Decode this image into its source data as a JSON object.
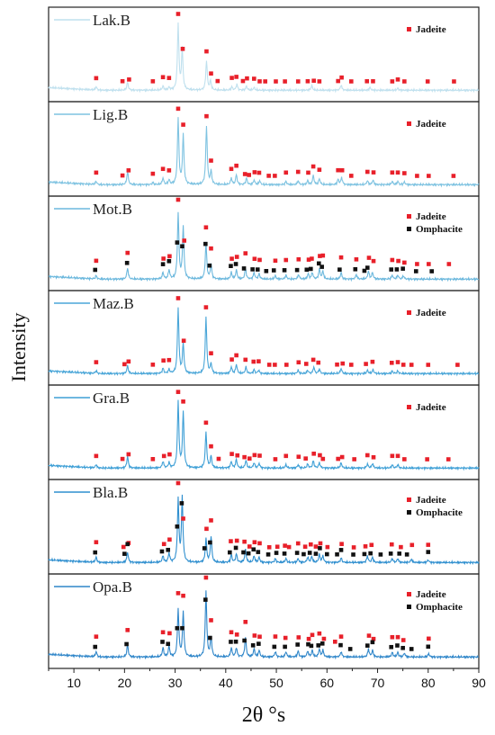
{
  "chart_data": {
    "type": "line",
    "xlabel": "2θ °s",
    "ylabel": "Intensity",
    "xlim": [
      5,
      90
    ],
    "x_ticks": [
      10,
      20,
      30,
      40,
      50,
      60,
      70,
      80,
      90
    ],
    "colors": {
      "jadeite": "#e8202a",
      "omphacite": "#111111",
      "axis": "#222222"
    },
    "legend_labels": {
      "jadeite": "Jadeite",
      "omphacite": "Omphacite"
    },
    "series": [
      {
        "name": "Lak.B",
        "color": "#bfe0ee",
        "minerals": [
          "jadeite"
        ],
        "peaks": [
          [
            14.4,
            0.05
          ],
          [
            20.6,
            0.12
          ],
          [
            27.6,
            0.06
          ],
          [
            28.8,
            0.04
          ],
          [
            30.6,
            1.0
          ],
          [
            31.4,
            0.62
          ],
          [
            36.2,
            0.45
          ],
          [
            37.0,
            0.14
          ],
          [
            41.2,
            0.05
          ],
          [
            42.2,
            0.09
          ],
          [
            44.1,
            0.06
          ],
          [
            45.6,
            0.04
          ],
          [
            57.0,
            0.07
          ],
          [
            62.8,
            0.08
          ],
          [
            68.5,
            0.04
          ],
          [
            74.0,
            0.03
          ]
        ],
        "jadeite_markers": [
          14.4,
          19.6,
          20.9,
          25.6,
          27.6,
          28.8,
          30.6,
          31.5,
          36.2,
          37.1,
          38.4,
          41.2,
          42.1,
          43.4,
          44.2,
          45.6,
          46.7,
          47.8,
          49.9,
          51.7,
          54.3,
          56.2,
          57.4,
          58.5,
          62.2,
          62.9,
          64.8,
          67.9,
          69.1,
          72.9,
          74.0,
          75.3,
          79.9,
          85.1
        ],
        "omphacite_markers": []
      },
      {
        "name": "Lig.B",
        "color": "#7fc3e1",
        "minerals": [
          "jadeite"
        ],
        "peaks": [
          [
            14.4,
            0.05
          ],
          [
            20.6,
            0.2
          ],
          [
            25.6,
            0.03
          ],
          [
            27.6,
            0.1
          ],
          [
            28.8,
            0.07
          ],
          [
            30.6,
            1.0
          ],
          [
            31.6,
            0.75
          ],
          [
            36.2,
            0.9
          ],
          [
            37.1,
            0.2
          ],
          [
            41.1,
            0.1
          ],
          [
            42.1,
            0.15
          ],
          [
            44.1,
            0.1
          ],
          [
            45.6,
            0.07
          ],
          [
            46.7,
            0.06
          ],
          [
            51.9,
            0.05
          ],
          [
            54.3,
            0.06
          ],
          [
            56.2,
            0.06
          ],
          [
            57.3,
            0.14
          ],
          [
            58.5,
            0.09
          ],
          [
            62.2,
            0.08
          ],
          [
            62.9,
            0.11
          ],
          [
            68.0,
            0.06
          ],
          [
            69.1,
            0.07
          ],
          [
            72.9,
            0.05
          ],
          [
            74.0,
            0.05
          ],
          [
            75.3,
            0.04
          ]
        ],
        "jadeite_markers": [
          14.4,
          19.6,
          20.8,
          25.6,
          27.6,
          28.8,
          30.6,
          31.6,
          36.2,
          37.1,
          41.1,
          42.1,
          43.8,
          44.6,
          45.7,
          46.6,
          48.5,
          49.7,
          51.9,
          54.3,
          56.3,
          57.3,
          58.5,
          62.2,
          63.0,
          64.8,
          68.0,
          69.2,
          72.9,
          74.0,
          75.3,
          77.8,
          80.1,
          85.0
        ],
        "omphacite_markers": []
      },
      {
        "name": "Mot.B",
        "color": "#6cb8dd",
        "minerals": [
          "jadeite",
          "omphacite"
        ],
        "peaks": [
          [
            14.4,
            0.05
          ],
          [
            20.6,
            0.17
          ],
          [
            27.6,
            0.1
          ],
          [
            28.8,
            0.14
          ],
          [
            30.6,
            1.0
          ],
          [
            31.6,
            0.8
          ],
          [
            36.1,
            0.55
          ],
          [
            37.1,
            0.22
          ],
          [
            41.1,
            0.1
          ],
          [
            42.1,
            0.14
          ],
          [
            43.9,
            0.16
          ],
          [
            45.6,
            0.1
          ],
          [
            46.6,
            0.08
          ],
          [
            49.8,
            0.05
          ],
          [
            51.9,
            0.06
          ],
          [
            54.4,
            0.07
          ],
          [
            56.3,
            0.08
          ],
          [
            57.1,
            0.1
          ],
          [
            58.5,
            0.15
          ],
          [
            59.2,
            0.12
          ],
          [
            62.8,
            0.1
          ],
          [
            65.8,
            0.07
          ],
          [
            68.2,
            0.12
          ],
          [
            69.0,
            0.1
          ],
          [
            72.9,
            0.06
          ],
          [
            74.0,
            0.06
          ],
          [
            75.1,
            0.05
          ]
        ],
        "jadeite_markers": [
          14.4,
          20.6,
          27.7,
          28.9,
          30.6,
          31.8,
          36.1,
          37.1,
          41.2,
          42.2,
          43.9,
          45.7,
          46.7,
          49.8,
          51.9,
          54.4,
          56.4,
          57.0,
          58.6,
          59.2,
          62.8,
          65.8,
          68.3,
          69.2,
          72.9,
          74.1,
          75.3,
          77.8,
          80.1,
          84.1
        ],
        "omphacite_markers": [
          14.2,
          20.5,
          27.6,
          28.8,
          30.4,
          31.4,
          36.0,
          36.8,
          41.0,
          42.0,
          43.6,
          45.3,
          46.3,
          48.0,
          49.5,
          51.6,
          54.1,
          56.0,
          56.8,
          58.4,
          59.0,
          62.5,
          65.6,
          67.4,
          68.0,
          72.7,
          73.8,
          75.0,
          77.6,
          80.7
        ]
      },
      {
        "name": "Maz.B",
        "color": "#4aa6d8",
        "minerals": [
          "jadeite"
        ],
        "peaks": [
          [
            14.4,
            0.04
          ],
          [
            20.6,
            0.12
          ],
          [
            27.6,
            0.08
          ],
          [
            28.8,
            0.06
          ],
          [
            30.6,
            1.0
          ],
          [
            31.6,
            0.46
          ],
          [
            36.1,
            0.87
          ],
          [
            37.1,
            0.15
          ],
          [
            41.1,
            0.1
          ],
          [
            42.1,
            0.14
          ],
          [
            44.0,
            0.1
          ],
          [
            45.6,
            0.06
          ],
          [
            46.5,
            0.05
          ],
          [
            54.3,
            0.05
          ],
          [
            56.2,
            0.05
          ],
          [
            57.4,
            0.1
          ],
          [
            58.5,
            0.07
          ],
          [
            62.8,
            0.08
          ],
          [
            68.0,
            0.05
          ],
          [
            69.1,
            0.06
          ],
          [
            72.9,
            0.04
          ],
          [
            74.0,
            0.04
          ]
        ],
        "jadeite_markers": [
          14.4,
          20.0,
          20.8,
          25.6,
          27.7,
          28.8,
          30.6,
          31.7,
          36.1,
          37.1,
          41.2,
          42.1,
          43.9,
          45.5,
          46.5,
          48.6,
          49.7,
          52.0,
          54.4,
          55.9,
          57.3,
          58.3,
          62.0,
          63.1,
          64.8,
          67.7,
          69.0,
          72.8,
          74.0,
          75.1,
          76.7,
          80.0,
          85.8
        ],
        "omphacite_markers": []
      },
      {
        "name": "Gra.B",
        "color": "#3e9fd6",
        "minerals": [
          "jadeite"
        ],
        "peaks": [
          [
            14.4,
            0.05
          ],
          [
            20.6,
            0.18
          ],
          [
            27.6,
            0.1
          ],
          [
            28.8,
            0.08
          ],
          [
            30.6,
            1.0
          ],
          [
            31.6,
            0.85
          ],
          [
            36.1,
            0.55
          ],
          [
            37.1,
            0.18
          ],
          [
            41.1,
            0.1
          ],
          [
            42.1,
            0.13
          ],
          [
            44.0,
            0.12
          ],
          [
            45.6,
            0.08
          ],
          [
            46.6,
            0.07
          ],
          [
            51.9,
            0.05
          ],
          [
            54.3,
            0.05
          ],
          [
            56.2,
            0.06
          ],
          [
            57.3,
            0.11
          ],
          [
            58.5,
            0.08
          ],
          [
            62.8,
            0.08
          ],
          [
            68.0,
            0.06
          ],
          [
            69.0,
            0.07
          ],
          [
            72.9,
            0.05
          ],
          [
            74.0,
            0.05
          ]
        ],
        "jadeite_markers": [
          14.4,
          19.6,
          20.8,
          25.6,
          27.8,
          28.9,
          30.6,
          31.6,
          36.1,
          37.1,
          38.6,
          41.2,
          42.3,
          43.7,
          44.7,
          45.7,
          46.7,
          49.8,
          51.9,
          54.4,
          55.8,
          57.4,
          58.6,
          59.2,
          62.2,
          63.0,
          65.4,
          68.0,
          69.2,
          72.9,
          74.0,
          75.3,
          79.8,
          84.0
        ],
        "omphacite_markers": []
      },
      {
        "name": "Bla.B",
        "color": "#2f8fcf",
        "minerals": [
          "jadeite",
          "omphacite"
        ],
        "peaks": [
          [
            14.4,
            0.08
          ],
          [
            20.6,
            0.16
          ],
          [
            27.6,
            0.1
          ],
          [
            28.8,
            0.14
          ],
          [
            30.6,
            0.95
          ],
          [
            31.4,
            0.98
          ],
          [
            36.1,
            0.36
          ],
          [
            37.1,
            0.4
          ],
          [
            41.1,
            0.12
          ],
          [
            42.1,
            0.13
          ],
          [
            43.9,
            0.2
          ],
          [
            45.6,
            0.1
          ],
          [
            46.6,
            0.08
          ],
          [
            49.8,
            0.06
          ],
          [
            51.9,
            0.06
          ],
          [
            54.3,
            0.06
          ],
          [
            56.2,
            0.08
          ],
          [
            57.0,
            0.09
          ],
          [
            58.5,
            0.12
          ],
          [
            59.2,
            0.1
          ],
          [
            62.8,
            0.07
          ],
          [
            68.0,
            0.1
          ],
          [
            69.0,
            0.08
          ],
          [
            72.9,
            0.06
          ],
          [
            74.0,
            0.06
          ],
          [
            76.7,
            0.05
          ],
          [
            80.0,
            0.04
          ]
        ],
        "jadeite_markers": [
          14.4,
          19.8,
          20.8,
          27.8,
          28.9,
          30.6,
          31.6,
          36.2,
          37.1,
          41.0,
          42.2,
          43.7,
          44.7,
          45.7,
          46.7,
          48.6,
          50.2,
          51.7,
          52.5,
          54.3,
          55.7,
          56.8,
          57.8,
          58.7,
          60.1,
          62.9,
          65.3,
          67.6,
          68.8,
          72.8,
          74.6,
          76.8,
          80.0
        ],
        "omphacite_markers": [
          14.2,
          20.0,
          20.6,
          27.4,
          28.6,
          30.4,
          31.3,
          35.8,
          36.9,
          40.8,
          42.0,
          43.5,
          44.5,
          45.5,
          46.4,
          48.4,
          50.0,
          51.6,
          54.1,
          55.4,
          56.6,
          57.8,
          58.6,
          60.0,
          62.0,
          62.8,
          65.2,
          67.4,
          68.6,
          70.6,
          72.6,
          74.3,
          75.8,
          80.0
        ]
      },
      {
        "name": "Opa.B",
        "color": "#2f86c9",
        "minerals": [
          "jadeite",
          "omphacite"
        ],
        "peaks": [
          [
            14.4,
            0.08
          ],
          [
            20.6,
            0.18
          ],
          [
            27.6,
            0.14
          ],
          [
            28.8,
            0.16
          ],
          [
            30.6,
            0.72
          ],
          [
            31.6,
            0.68
          ],
          [
            36.1,
            1.0
          ],
          [
            37.1,
            0.3
          ],
          [
            41.1,
            0.14
          ],
          [
            42.1,
            0.14
          ],
          [
            43.9,
            0.3
          ],
          [
            45.6,
            0.12
          ],
          [
            46.6,
            0.1
          ],
          [
            49.8,
            0.08
          ],
          [
            51.9,
            0.08
          ],
          [
            54.3,
            0.09
          ],
          [
            56.2,
            0.09
          ],
          [
            57.1,
            0.1
          ],
          [
            58.5,
            0.12
          ],
          [
            59.2,
            0.1
          ],
          [
            62.8,
            0.08
          ],
          [
            68.2,
            0.12
          ],
          [
            69.0,
            0.1
          ],
          [
            72.9,
            0.07
          ],
          [
            74.0,
            0.07
          ],
          [
            75.3,
            0.06
          ],
          [
            80.1,
            0.05
          ]
        ],
        "jadeite_markers": [
          14.4,
          20.6,
          27.6,
          28.9,
          30.6,
          31.6,
          36.1,
          37.1,
          41.1,
          42.2,
          43.9,
          45.7,
          46.7,
          49.8,
          51.8,
          54.4,
          56.4,
          57.1,
          58.5,
          59.4,
          61.6,
          62.8,
          68.3,
          69.2,
          72.9,
          74.0,
          75.1,
          80.1
        ],
        "omphacite_markers": [
          14.2,
          20.4,
          27.5,
          28.6,
          30.4,
          31.4,
          36.0,
          36.9,
          41.0,
          42.0,
          43.7,
          45.4,
          46.5,
          49.6,
          51.7,
          54.2,
          56.3,
          56.9,
          58.3,
          59.1,
          62.7,
          64.6,
          68.0,
          69.0,
          72.7,
          73.9,
          75.0,
          76.7,
          80.0
        ]
      }
    ]
  }
}
